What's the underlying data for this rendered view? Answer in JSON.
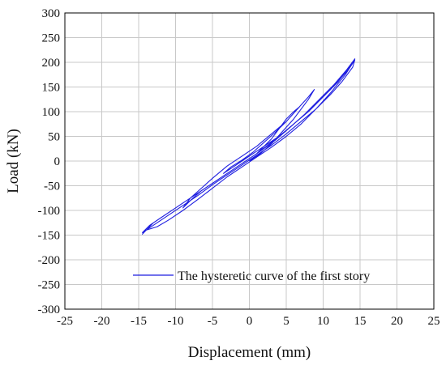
{
  "chart_data": {
    "type": "line",
    "title": "",
    "xlabel": "Displacement (mm)",
    "ylabel": "Load (kN)",
    "xlim": [
      -25,
      25
    ],
    "ylim": [
      -300,
      300
    ],
    "xticks": [
      -25,
      -20,
      -15,
      -10,
      -5,
      0,
      5,
      10,
      15,
      20,
      25
    ],
    "yticks": [
      -300,
      -250,
      -200,
      -150,
      -100,
      -50,
      0,
      50,
      100,
      150,
      200,
      250,
      300
    ],
    "grid": true,
    "legend_position": "bottom-right",
    "series": [
      {
        "name": "The hysteretic curve of the first story",
        "color": "#1f1fe0",
        "x": [
          0,
          1.5,
          3,
          4.5,
          6,
          7,
          8,
          8.8,
          8,
          6.5,
          5,
          3,
          1,
          -1,
          -3,
          -5,
          -6.5,
          -8,
          -9,
          -8,
          -6.5,
          -5,
          -3,
          -1,
          1,
          2,
          3,
          4,
          5,
          6,
          6.8,
          6.2,
          5,
          3.5,
          2,
          0.5,
          -1,
          -2.5,
          -3.5,
          -2.5,
          -1,
          0.5,
          2,
          4,
          6,
          8,
          10,
          12,
          13,
          14,
          14.3,
          13.2,
          11.5,
          9.5,
          7.5,
          5.5,
          3.5,
          1.5,
          -0.5,
          -2.5,
          -5,
          -7.5,
          -10,
          -12,
          -13.5,
          -14.5,
          -13,
          -11,
          -9,
          -7,
          -5,
          -3,
          -1,
          1,
          3,
          5,
          7,
          9,
          11,
          12.5,
          14,
          14.3,
          13,
          11,
          9,
          7,
          5,
          3,
          1,
          -1,
          -3,
          -5,
          -7,
          -9,
          -11,
          -12.5,
          -14,
          -14.5,
          -13,
          -11,
          -9,
          -7,
          -5,
          -3,
          -1,
          1,
          3,
          5,
          7,
          9,
          11,
          13,
          14.2
        ],
        "y": [
          0,
          15,
          35,
          60,
          85,
          105,
          125,
          145,
          130,
          105,
          80,
          55,
          30,
          10,
          -10,
          -35,
          -55,
          -75,
          -95,
          -80,
          -60,
          -45,
          -25,
          -5,
          15,
          30,
          45,
          65,
          85,
          100,
          110,
          100,
          80,
          58,
          38,
          18,
          2,
          -12,
          -25,
          -15,
          0,
          15,
          30,
          50,
          75,
          100,
          130,
          160,
          180,
          200,
          207,
          185,
          155,
          125,
          95,
          68,
          42,
          20,
          0,
          -20,
          -45,
          -70,
          -95,
          -115,
          -130,
          -145,
          -130,
          -110,
          -90,
          -70,
          -48,
          -28,
          -8,
          12,
          32,
          55,
          80,
          105,
          135,
          160,
          190,
          205,
          175,
          138,
          105,
          75,
          50,
          28,
          8,
          -12,
          -32,
          -55,
          -78,
          -100,
          -120,
          -133,
          -140,
          -148,
          -125,
          -105,
          -85,
          -65,
          -45,
          -25,
          -5,
          15,
          38,
          62,
          88,
          115,
          145,
          178,
          204
        ]
      }
    ]
  }
}
